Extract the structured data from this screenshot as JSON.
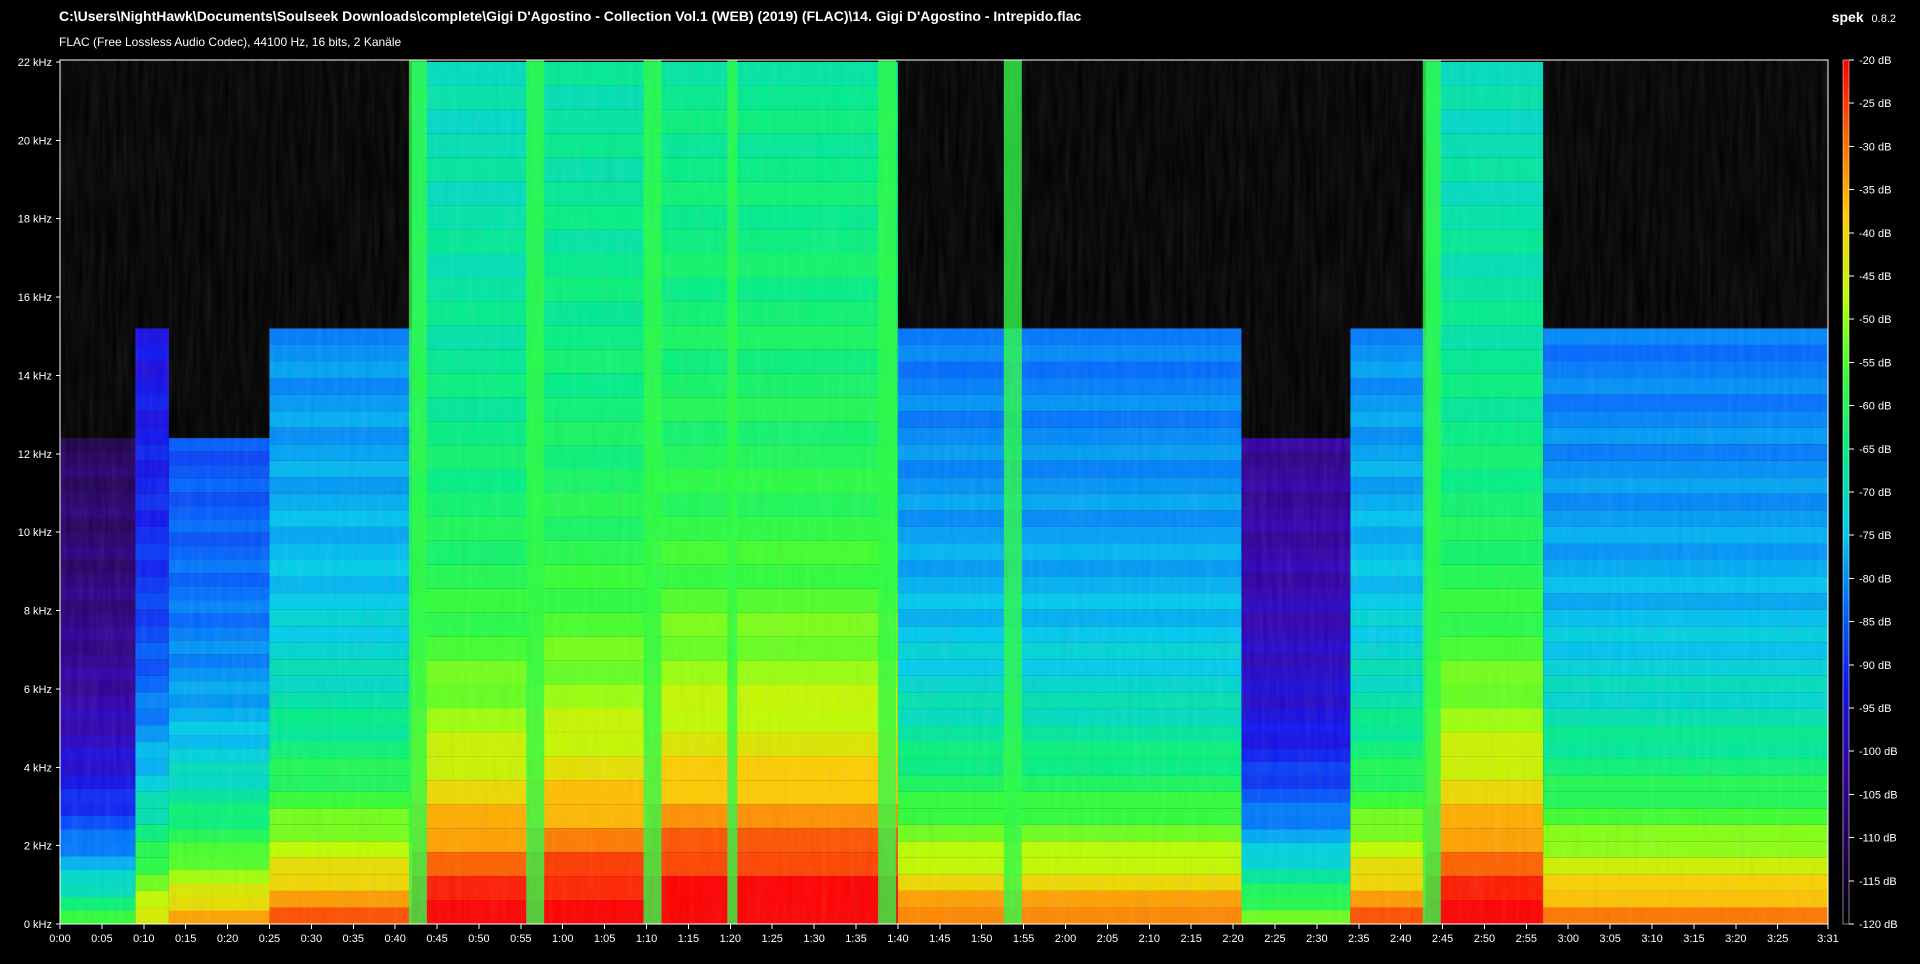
{
  "window": {
    "title": "C:\\Users\\NightHawk\\Documents\\Soulseek Downloads\\complete\\Gigi D'Agostino - Collection Vol.1 (WEB) (2019) (FLAC)\\14. Gigi D'Agostino - Intrepido.flac",
    "info": "FLAC (Free Lossless Audio Codec), 44100 Hz, 16 bits, 2 Kanäle",
    "brand": "spek",
    "version": "0.8.2"
  },
  "chart_data": {
    "type": "heatmap",
    "title": "",
    "xlabel": "",
    "ylabel": "",
    "x_ticks": [
      "0:00",
      "0:05",
      "0:10",
      "0:15",
      "0:20",
      "0:25",
      "0:30",
      "0:35",
      "0:40",
      "0:45",
      "0:50",
      "0:55",
      "1:00",
      "1:05",
      "1:10",
      "1:15",
      "1:20",
      "1:25",
      "1:30",
      "1:35",
      "1:40",
      "1:45",
      "1:50",
      "1:55",
      "2:00",
      "2:05",
      "2:10",
      "2:15",
      "2:20",
      "2:25",
      "2:30",
      "2:35",
      "2:40",
      "2:45",
      "2:50",
      "2:55",
      "3:00",
      "3:05",
      "3:10",
      "3:15",
      "3:20",
      "3:25",
      "3:31"
    ],
    "x_tick_seconds": [
      0,
      5,
      10,
      15,
      20,
      25,
      30,
      35,
      40,
      45,
      50,
      55,
      60,
      65,
      70,
      75,
      80,
      85,
      90,
      95,
      100,
      105,
      110,
      115,
      120,
      125,
      130,
      135,
      140,
      145,
      150,
      155,
      160,
      165,
      170,
      175,
      180,
      185,
      190,
      195,
      200,
      205,
      211
    ],
    "x_range_seconds": [
      0,
      211
    ],
    "y_ticks": [
      "0 kHz",
      "2 kHz",
      "4 kHz",
      "6 kHz",
      "8 kHz",
      "10 kHz",
      "12 kHz",
      "14 kHz",
      "16 kHz",
      "18 kHz",
      "20 kHz",
      "22 kHz"
    ],
    "y_tick_khz": [
      0,
      2,
      4,
      6,
      8,
      10,
      12,
      14,
      16,
      18,
      20,
      22
    ],
    "y_range_khz": [
      0,
      22.05
    ],
    "colorbar": {
      "labels": [
        "-20 dB",
        "-25 dB",
        "-30 dB",
        "-35 dB",
        "-40 dB",
        "-45 dB",
        "-50 dB",
        "-55 dB",
        "-60 dB",
        "-65 dB",
        "-70 dB",
        "-75 dB",
        "-80 dB",
        "-85 dB",
        "-90 dB",
        "-95 dB",
        "-100 dB",
        "-105 dB",
        "-110 dB",
        "-115 dB",
        "-120 dB"
      ],
      "db_values": [
        -20,
        -25,
        -30,
        -35,
        -40,
        -45,
        -50,
        -55,
        -60,
        -65,
        -70,
        -75,
        -80,
        -85,
        -90,
        -95,
        -100,
        -105,
        -110,
        -115,
        -120
      ],
      "range_db": [
        -120,
        -20
      ],
      "gradient": [
        "#ff0000",
        "#ff6600",
        "#ffcc00",
        "#bbff00",
        "#33ff33",
        "#00ee88",
        "#00ccee",
        "#0066ff",
        "#1111ee",
        "#3300aa",
        "#220055",
        "#000000"
      ]
    },
    "segments": [
      {
        "start_s": 0.0,
        "end_s": 9.0,
        "level_db": -102,
        "cutoff_khz": 12.4
      },
      {
        "start_s": 9.0,
        "end_s": 13.0,
        "level_db": -86,
        "cutoff_khz": 15.2
      },
      {
        "start_s": 13.0,
        "end_s": 25.0,
        "level_db": -78,
        "cutoff_khz": 12.4
      },
      {
        "start_s": 25.0,
        "end_s": 42.0,
        "level_db": -72,
        "cutoff_khz": 15.2
      },
      {
        "start_s": 42.0,
        "end_s": 56.0,
        "level_db": -62,
        "cutoff_khz": 22.0
      },
      {
        "start_s": 56.0,
        "end_s": 70.0,
        "level_db": -60,
        "cutoff_khz": 22.0
      },
      {
        "start_s": 70.0,
        "end_s": 100.0,
        "level_db": -58,
        "cutoff_khz": 22.0
      },
      {
        "start_s": 100.0,
        "end_s": 141.0,
        "level_db": -74,
        "cutoff_khz": 15.2
      },
      {
        "start_s": 141.0,
        "end_s": 154.0,
        "level_db": -96,
        "cutoff_khz": 12.4
      },
      {
        "start_s": 154.0,
        "end_s": 163.0,
        "level_db": -72,
        "cutoff_khz": 15.2
      },
      {
        "start_s": 163.0,
        "end_s": 177.0,
        "level_db": -62,
        "cutoff_khz": 22.0
      },
      {
        "start_s": 177.0,
        "end_s": 211.0,
        "level_db": -74,
        "cutoff_khz": 15.2
      }
    ],
    "bursts_s": [
      42.0,
      56.0,
      70.0,
      80.0,
      98.0,
      113.0,
      163.0
    ]
  }
}
